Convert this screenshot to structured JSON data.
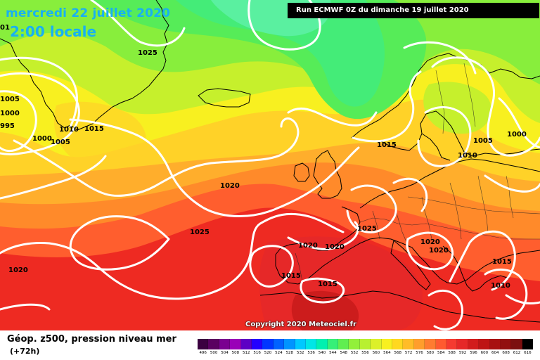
{
  "header": {
    "date": "mercredi 22 juillet 2020",
    "time": "2:00 locale",
    "run": "Run ECMWF 0Z du dimanche 19 juillet 2020"
  },
  "copyright": "Copyright 2020 Meteociel.fr",
  "legend": {
    "field": "Géop. z500, pression niveau mer",
    "lead": "(+72h)",
    "scale_values": [
      "496",
      "500",
      "504",
      "508",
      "512",
      "516",
      "520",
      "524",
      "528",
      "532",
      "536",
      "540",
      "544",
      "548",
      "552",
      "556",
      "560",
      "564",
      "568",
      "572",
      "576",
      "580",
      "584",
      "588",
      "592",
      "596",
      "600",
      "604",
      "608",
      "612",
      "616"
    ],
    "scale_colors": [
      "#3b0040",
      "#5a0060",
      "#7a0090",
      "#9a00b8",
      "#5d00c4",
      "#2400ff",
      "#0036ff",
      "#0062ff",
      "#0094ff",
      "#00c8ff",
      "#00e6e6",
      "#00f0b0",
      "#36f078",
      "#60ee50",
      "#92f03a",
      "#b8f030",
      "#dcf02a",
      "#f8f020",
      "#ffd820",
      "#ffbc28",
      "#ff9e2c",
      "#ff7c30",
      "#ff5a30",
      "#f53a30",
      "#e62828",
      "#d21c1c",
      "#be1414",
      "#a81010",
      "#921010",
      "#7c1010",
      "#000000"
    ]
  },
  "isobar_labels": [
    {
      "id": "l1",
      "text": "1025"
    },
    {
      "id": "l2",
      "text": "1005"
    },
    {
      "id": "l3",
      "text": "1000"
    },
    {
      "id": "l4",
      "text": "995"
    },
    {
      "id": "l5",
      "text": "1000"
    },
    {
      "id": "l6",
      "text": "1005"
    },
    {
      "id": "l7",
      "text": "1010"
    },
    {
      "id": "l8",
      "text": "1015"
    },
    {
      "id": "l9",
      "text": "1020"
    },
    {
      "id": "l10",
      "text": "1025"
    },
    {
      "id": "l11",
      "text": "1020"
    },
    {
      "id": "l12",
      "text": "1015"
    },
    {
      "id": "l13",
      "text": "1010"
    },
    {
      "id": "l14",
      "text": "1005"
    },
    {
      "id": "l15",
      "text": "1000"
    },
    {
      "id": "l16",
      "text": "1025"
    },
    {
      "id": "l17",
      "text": "1020"
    },
    {
      "id": "l18",
      "text": "1020"
    },
    {
      "id": "l19",
      "text": "1020"
    },
    {
      "id": "l20",
      "text": "1020"
    },
    {
      "id": "l21",
      "text": "1015"
    },
    {
      "id": "l22",
      "text": "1015"
    },
    {
      "id": "l23",
      "text": "1015"
    },
    {
      "id": "l24",
      "text": "1010"
    },
    {
      "id": "l25",
      "text": "01"
    }
  ]
}
